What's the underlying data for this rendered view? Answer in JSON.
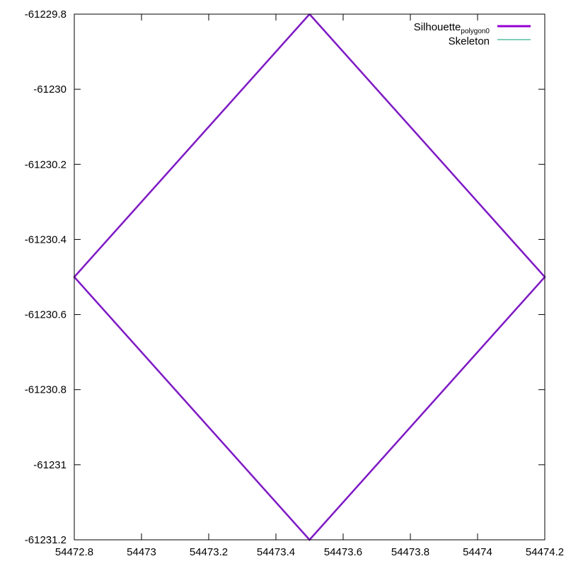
{
  "chart_data": {
    "type": "line",
    "title": "",
    "xlabel": "",
    "ylabel": "",
    "xlim": [
      54472.8,
      54474.2
    ],
    "ylim": [
      -61231.2,
      -61229.8
    ],
    "x_ticks": [
      54472.8,
      54473,
      54473.2,
      54473.4,
      54473.6,
      54473.8,
      54474,
      54474.2
    ],
    "x_tick_labels": [
      "54472.8",
      "54473",
      "54473.2",
      "54473.4",
      "54473.6",
      "54473.8",
      "54474",
      "54474.2"
    ],
    "y_ticks": [
      -61229.8,
      -61230,
      -61230.2,
      -61230.4,
      -61230.6,
      -61230.8,
      -61231,
      -61231.2
    ],
    "y_tick_labels": [
      "-61229.8",
      "-61230",
      "-61230.2",
      "-61230.4",
      "-61230.6",
      "-61230.8",
      "-61231",
      "-61231.2"
    ],
    "grid": false,
    "legend_position": "top-right",
    "series": [
      {
        "name": "Silhouette_polygon0",
        "legend_text": "Silhouette",
        "legend_subscript": "polygon0",
        "color": "#9400d3",
        "x": [
          54473.5,
          54474.2,
          54473.5,
          54472.8,
          54473.5
        ],
        "y": [
          -61229.8,
          -61230.5,
          -61231.2,
          -61230.5,
          -61229.8
        ]
      },
      {
        "name": "Skeleton",
        "legend_text": "Skeleton",
        "color": "#009e73",
        "x": [],
        "y": []
      }
    ]
  }
}
